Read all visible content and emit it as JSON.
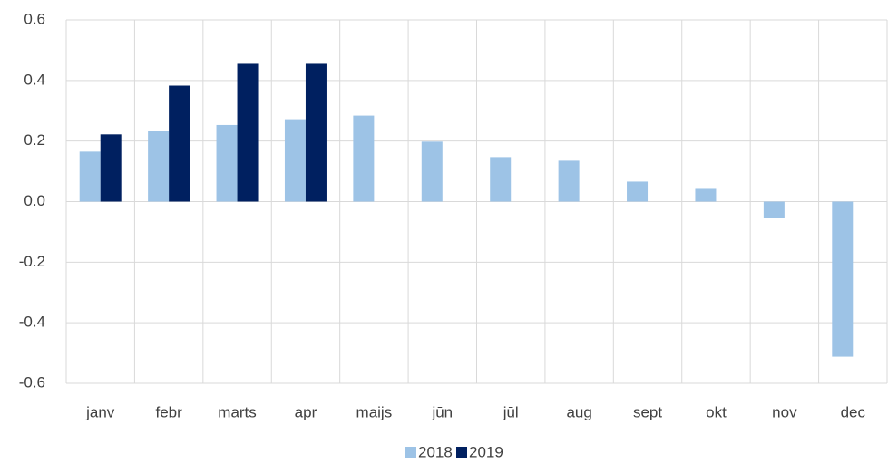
{
  "chart_data": {
    "type": "bar",
    "categories": [
      "janv",
      "febr",
      "marts",
      "apr",
      "maijs",
      "jūn",
      "jūl",
      "aug",
      "sept",
      "okt",
      "nov",
      "dec"
    ],
    "series": [
      {
        "name": "2018",
        "color": "#9dc3e6",
        "values": [
          0.165,
          0.234,
          0.253,
          0.272,
          0.284,
          0.198,
          0.147,
          0.135,
          0.066,
          0.045,
          -0.054,
          -0.512
        ]
      },
      {
        "name": "2019",
        "color": "#002060",
        "values": [
          0.222,
          0.383,
          0.455,
          0.455,
          null,
          null,
          null,
          null,
          null,
          null,
          null,
          null
        ]
      }
    ],
    "ylim": [
      -0.6,
      0.6
    ],
    "yticks": [
      -0.6,
      -0.4,
      -0.2,
      {
        "value": 0,
        "label": "0.0"
      },
      0.2,
      0.4,
      0.6
    ],
    "grid": true,
    "legend": "bottom"
  }
}
